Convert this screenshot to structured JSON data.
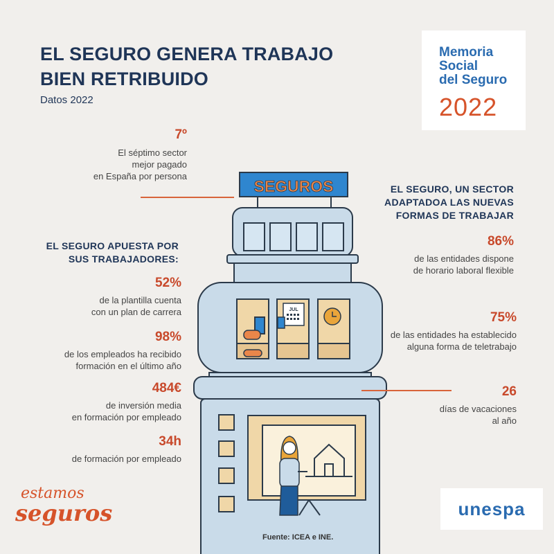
{
  "header": {
    "title_line1": "EL SEGURO GENERA TRABAJO",
    "title_line2": "BIEN RETRIBUIDO",
    "subtitle": "Datos 2022"
  },
  "badge": {
    "line1": "Memoria",
    "line2": "Social",
    "line3": "del Seguro",
    "year": "2022"
  },
  "building": {
    "sign": "SEGUROS",
    "calendar_label": "JUL"
  },
  "left_stats": {
    "rank": {
      "value": "7º",
      "desc1": "El séptimo sector",
      "desc2": "mejor pagado",
      "desc3": "en España por persona"
    },
    "heading1": "EL SEGURO APUESTA POR",
    "heading2": "SUS TRABAJADORES:",
    "items": [
      {
        "value": "52%",
        "desc1": "de la plantilla cuenta",
        "desc2": "con un plan de carrera"
      },
      {
        "value": "98%",
        "desc1": "de los empleados ha recibido",
        "desc2": "formación en el último año"
      },
      {
        "value": "484€",
        "desc1": "de inversión media",
        "desc2": "en formación por empleado"
      },
      {
        "value": "34h",
        "desc1": "de formación por empleado",
        "desc2": ""
      }
    ]
  },
  "right_stats": {
    "heading1": "EL SEGURO, UN SECTOR",
    "heading2": "ADAPTADOA LAS NUEVAS",
    "heading3": "FORMAS DE TRABAJAR",
    "items": [
      {
        "value": "86%",
        "desc1": "de las entidades dispone",
        "desc2": "de horario laboral flexible"
      },
      {
        "value": "75%",
        "desc1": "de las entidades ha establecido",
        "desc2": "alguna forma de teletrabajo"
      },
      {
        "value": "26",
        "desc1": "días de vacaciones",
        "desc2": "al año"
      }
    ]
  },
  "footer": {
    "source": "Fuente: ICEA e INE.",
    "slogan1": "estamos",
    "slogan2": "seguros",
    "logo": "unespa"
  },
  "colors": {
    "navy": "#1f3557",
    "accent": "#c8492b",
    "building": "#c9dbe9",
    "outline": "#2b3a4a",
    "sand": "#f0d7a8"
  }
}
